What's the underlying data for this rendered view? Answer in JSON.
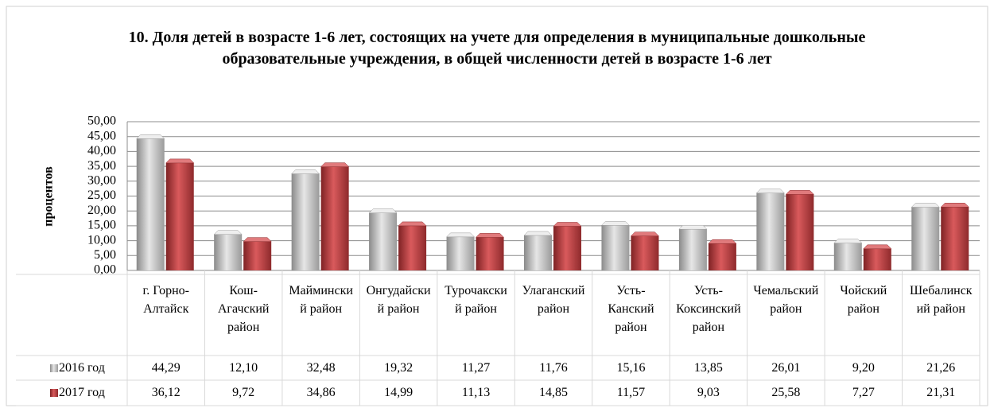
{
  "chart_data": {
    "type": "bar",
    "title": "10. Доля детей в возрасте 1-6 лет, состоящих на учете для определения в муниципальные дошкольные образовательные учреждения, в общей численности детей в возрасте 1-6 лет",
    "ylabel": "процентов",
    "categories": [
      "г. Горно-Алтайск",
      "Кош-Агачский район",
      "Майминский район",
      "Онгудайский район",
      "Турочакский район",
      "Улаганский район",
      "Усть-Канский район",
      "Усть-Коксинский район",
      "Чемальский район",
      "Чойский район",
      "Шебалинский район"
    ],
    "series": [
      {
        "name": "2016 год",
        "color": "#b4b4b4",
        "values": [
          44.29,
          12.1,
          32.48,
          19.32,
          11.27,
          11.76,
          15.16,
          13.85,
          26.01,
          9.2,
          21.26
        ],
        "value_labels": [
          "44,29",
          "12,10",
          "32,48",
          "19,32",
          "11,27",
          "11,76",
          "15,16",
          "13,85",
          "26,01",
          "9,20",
          "21,26"
        ]
      },
      {
        "name": "2017 год",
        "color": "#c0393b",
        "values": [
          36.12,
          9.72,
          34.86,
          14.99,
          11.13,
          14.85,
          11.57,
          9.03,
          25.58,
          7.27,
          21.31
        ],
        "value_labels": [
          "36,12",
          "9,72",
          "34,86",
          "14,99",
          "11,13",
          "14,85",
          "11,57",
          "9,03",
          "25,58",
          "7,27",
          "21,31"
        ]
      }
    ],
    "ylim": [
      0,
      50
    ],
    "yticks": [
      {
        "value": 0,
        "label": "0,00"
      },
      {
        "value": 5,
        "label": "5,00"
      },
      {
        "value": 10,
        "label": "10,00"
      },
      {
        "value": 15,
        "label": "15,00"
      },
      {
        "value": 20,
        "label": "20,00"
      },
      {
        "value": 25,
        "label": "25,00"
      },
      {
        "value": 30,
        "label": "30,00"
      },
      {
        "value": 35,
        "label": "35,00"
      },
      {
        "value": 40,
        "label": "40,00"
      },
      {
        "value": 45,
        "label": "45,00"
      },
      {
        "value": 50,
        "label": "50,00"
      }
    ],
    "grid": true
  }
}
